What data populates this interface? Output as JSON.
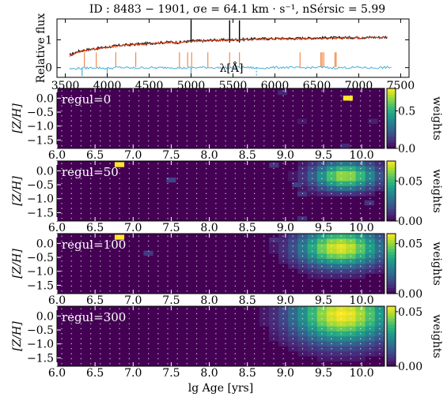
{
  "title": "ID : 8483 − 1901,  σe = 64.1 km · s⁻¹,  nSérsic = 5.99",
  "colors": {
    "data": "#111111",
    "model": "#e0461a",
    "residual": "#4aafd8",
    "mask": "#f08a4b",
    "cmap": [
      "#440154",
      "#482878",
      "#3e4989",
      "#31688e",
      "#26828e",
      "#1f9e89",
      "#35b779",
      "#6ece58",
      "#b5de2b",
      "#fde725"
    ]
  },
  "chart_data": [
    {
      "type": "line",
      "title": "ID : 8483 − 1901,  σe = 64.1 km · s⁻¹,  nSérsic = 5.99",
      "xlabel": "λ[Å]",
      "ylabel": "Relative flux",
      "xlim": [
        3400,
        7600
      ],
      "ylim": [
        -0.35,
        1.75
      ],
      "xticks": [
        "3500",
        "4000",
        "4500",
        "5000",
        "5500",
        "6000",
        "6500",
        "7000",
        "7500"
      ],
      "yticks": [
        "0",
        "1"
      ],
      "series": [
        {
          "role": "data",
          "x": [
            3550,
            3650,
            3750,
            3850,
            3950,
            4050,
            4150,
            4250,
            4350,
            4450,
            4550,
            4650,
            4750,
            4850,
            4950,
            5050,
            5150,
            5250,
            5350,
            5450,
            5550,
            5650,
            5750,
            5850,
            5950,
            6050,
            6150,
            6250,
            6350,
            6450,
            6550,
            6650,
            6750,
            6850,
            6950,
            7050,
            7150,
            7250,
            7350
          ],
          "y": [
            0.45,
            0.58,
            0.64,
            0.68,
            0.72,
            0.76,
            0.8,
            0.82,
            0.84,
            0.86,
            0.88,
            0.9,
            0.92,
            0.9,
            0.94,
            0.97,
            0.96,
            0.99,
            0.99,
            1.0,
            1.0,
            1.02,
            1.03,
            1.04,
            1.04,
            1.05,
            1.05,
            1.05,
            1.06,
            1.06,
            1.07,
            1.07,
            1.07,
            1.08,
            1.08,
            1.08,
            1.09,
            1.09,
            1.1
          ]
        },
        {
          "role": "model",
          "x": [
            3550,
            3650,
            3750,
            3850,
            3950,
            4050,
            4150,
            4250,
            4350,
            4450,
            4550,
            4650,
            4750,
            4850,
            4950,
            5050,
            5150,
            5250,
            5350,
            5450,
            5550,
            5650,
            5750,
            5850,
            5950,
            6050,
            6150,
            6250,
            6350,
            6450,
            6550,
            6650,
            6750,
            6850,
            6950,
            7050,
            7150,
            7250,
            7350
          ],
          "y": [
            0.42,
            0.56,
            0.63,
            0.67,
            0.71,
            0.75,
            0.79,
            0.81,
            0.83,
            0.85,
            0.87,
            0.89,
            0.91,
            0.89,
            0.93,
            0.96,
            0.95,
            0.98,
            0.98,
            0.99,
            0.99,
            1.01,
            1.02,
            1.03,
            1.03,
            1.04,
            1.04,
            1.04,
            1.05,
            1.05,
            1.06,
            1.06,
            1.06,
            1.07,
            1.07,
            1.07,
            1.08,
            1.08,
            1.09
          ]
        },
        {
          "role": "residual",
          "x": [
            3550,
            3700,
            3850,
            4000,
            4150,
            4300,
            4450,
            4600,
            4750,
            4900,
            5050,
            5200,
            5350,
            5500,
            5650,
            5800,
            5950,
            6100,
            6250,
            6400,
            6550,
            6700,
            6850,
            7000,
            7150,
            7300,
            7400
          ],
          "y": [
            -0.05,
            -0.02,
            0.0,
            -0.03,
            0.01,
            -0.02,
            0.0,
            -0.01,
            0.01,
            -0.02,
            0.0,
            0.01,
            -0.01,
            0.0,
            0.01,
            -0.02,
            0.0,
            0.01,
            -0.01,
            0.0,
            0.01,
            -0.01,
            0.0,
            0.01,
            -0.01,
            0.0,
            0.01
          ]
        }
      ],
      "emission_lines": [
        3727,
        3869,
        4102,
        4340,
        4861,
        4959,
        5007,
        5200,
        5460,
        5577,
        6300,
        6548,
        6563,
        6583,
        6717,
        6731
      ],
      "black_lines": [
        5000,
        5460,
        5577
      ]
    },
    {
      "type": "heatmap",
      "label": "regul=0",
      "xlabel": "",
      "ylabel": "[Z/H]",
      "colorbar_label": "weights",
      "xlim": [
        6.0,
        10.3
      ],
      "ylim": [
        -1.8,
        0.35
      ],
      "xticks": [
        "6.0",
        "6.5",
        "7.0",
        "7.5",
        "8.0",
        "8.5",
        "9.0",
        "9.5",
        "10.0"
      ],
      "yticks": [
        "0.0",
        "−0.5",
        "−1.0",
        "−1.5"
      ],
      "cbar_ticks": [
        {
          "v": 0.0,
          "t": "0.0"
        },
        {
          "v": 0.5,
          "t": "0.5"
        }
      ],
      "vmax": 0.8,
      "cells": [
        [
          9.82,
          0.0,
          0.8
        ],
        [
          8.96,
          0.2,
          0.08
        ],
        [
          9.22,
          -0.83,
          0.06
        ],
        [
          10.15,
          -0.83,
          0.07
        ],
        [
          9.78,
          -1.72,
          0.09
        ]
      ]
    },
    {
      "type": "heatmap",
      "label": "regul=50",
      "xlabel": "",
      "ylabel": "[Z/H]",
      "colorbar_label": "weights",
      "xlim": [
        6.0,
        10.3
      ],
      "ylim": [
        -1.8,
        0.35
      ],
      "xticks": [
        "6.0",
        "6.5",
        "7.0",
        "7.5",
        "8.0",
        "8.5",
        "9.0",
        "9.5",
        "10.0"
      ],
      "yticks": [
        "0.0",
        "−0.5",
        "−1.0",
        "−1.5"
      ],
      "cbar_ticks": [
        {
          "v": 0.0,
          "t": "0.00"
        },
        {
          "v": 0.05,
          "t": "0.05"
        }
      ],
      "vmax": 0.075,
      "cells": [
        [
          6.82,
          0.22,
          0.075
        ],
        [
          7.5,
          -0.33,
          0.015
        ],
        [
          8.85,
          0.2,
          0.012
        ],
        [
          9.15,
          -0.5,
          0.014
        ],
        [
          9.22,
          -0.83,
          0.012
        ],
        [
          10.1,
          -1.15,
          0.012
        ],
        [
          9.22,
          -1.72,
          0.01
        ]
      ],
      "blob": {
        "cx": 9.78,
        "cy": -0.18,
        "sx": 0.3,
        "sy": 0.35,
        "peak": 0.065
      }
    },
    {
      "type": "heatmap",
      "label": "regul=100",
      "xlabel": "",
      "ylabel": "[Z/H]",
      "colorbar_label": "weights",
      "xlim": [
        6.0,
        10.3
      ],
      "ylim": [
        -1.8,
        0.35
      ],
      "xticks": [
        "6.0",
        "6.5",
        "7.0",
        "7.5",
        "8.0",
        "8.5",
        "9.0",
        "9.5",
        "10.0"
      ],
      "yticks": [
        "0.0",
        "−0.5",
        "−1.0",
        "−1.5"
      ],
      "cbar_ticks": [
        {
          "v": 0.0,
          "t": "0.00"
        },
        {
          "v": 0.05,
          "t": "0.05"
        }
      ],
      "vmax": 0.06,
      "cells": [
        [
          6.82,
          0.22,
          0.06
        ],
        [
          7.2,
          -0.35,
          0.01
        ],
        [
          8.85,
          0.12,
          0.008
        ]
      ],
      "blob": {
        "cx": 9.72,
        "cy": -0.15,
        "sx": 0.38,
        "sy": 0.48,
        "peak": 0.058
      }
    },
    {
      "type": "heatmap",
      "label": "regul=300",
      "xlabel": "lg Age [yrs]",
      "ylabel": "[Z/H]",
      "colorbar_label": "weights",
      "xlim": [
        6.0,
        10.3
      ],
      "ylim": [
        -1.8,
        0.35
      ],
      "xticks": [
        "6.0",
        "6.5",
        "7.0",
        "7.5",
        "8.0",
        "8.5",
        "9.0",
        "9.5",
        "10.0"
      ],
      "yticks": [
        "0.0",
        "−0.5",
        "−1.0",
        "−1.5"
      ],
      "cbar_ticks": [
        {
          "v": 0.0,
          "t": "0.00"
        },
        {
          "v": 0.05,
          "t": "0.05"
        }
      ],
      "vmax": 0.055,
      "cells": [],
      "blob": {
        "cx": 9.75,
        "cy": 0.05,
        "sx": 0.45,
        "sy": 0.7,
        "peak": 0.055
      }
    }
  ]
}
